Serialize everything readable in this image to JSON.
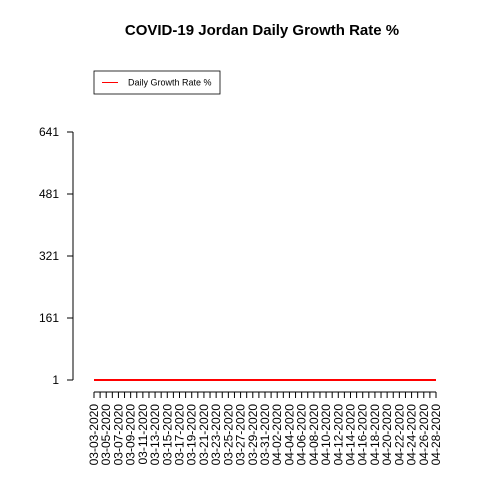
{
  "chart_data": {
    "type": "line",
    "title": "COVID-19 Jordan Daily Growth Rate %",
    "xlabel": "",
    "ylabel": "",
    "yticks": [
      1,
      161,
      321,
      481,
      641
    ],
    "ylim": [
      1,
      641
    ],
    "grid": false,
    "legend_position": "top-left",
    "x": [
      "03-03-2020",
      "03-04-2020",
      "03-05-2020",
      "03-06-2020",
      "03-07-2020",
      "03-08-2020",
      "03-09-2020",
      "03-10-2020",
      "03-11-2020",
      "03-12-2020",
      "03-13-2020",
      "03-14-2020",
      "03-15-2020",
      "03-16-2020",
      "03-17-2020",
      "03-18-2020",
      "03-19-2020",
      "03-20-2020",
      "03-21-2020",
      "03-22-2020",
      "03-23-2020",
      "03-24-2020",
      "03-25-2020",
      "03-26-2020",
      "03-27-2020",
      "03-28-2020",
      "03-29-2020",
      "03-30-2020",
      "03-31-2020",
      "04-01-2020",
      "04-02-2020",
      "04-03-2020",
      "04-04-2020",
      "04-05-2020",
      "04-06-2020",
      "04-07-2020",
      "04-08-2020",
      "04-09-2020",
      "04-10-2020",
      "04-11-2020",
      "04-12-2020",
      "04-13-2020",
      "04-14-2020",
      "04-15-2020",
      "04-16-2020",
      "04-17-2020",
      "04-18-2020",
      "04-19-2020",
      "04-20-2020",
      "04-21-2020",
      "04-22-2020",
      "04-23-2020",
      "04-24-2020",
      "04-25-2020",
      "04-26-2020",
      "04-27-2020",
      "04-28-2020"
    ],
    "x_labeled": [
      "03-03-2020",
      "03-05-2020",
      "03-07-2020",
      "03-09-2020",
      "03-11-2020",
      "03-13-2020",
      "03-15-2020",
      "03-17-2020",
      "03-19-2020",
      "03-21-2020",
      "03-23-2020",
      "03-25-2020",
      "03-27-2020",
      "03-29-2020",
      "03-31-2020",
      "04-02-2020",
      "04-04-2020",
      "04-06-2020",
      "04-08-2020",
      "04-10-2020",
      "04-12-2020",
      "04-14-2020",
      "04-16-2020",
      "04-18-2020",
      "04-20-2020",
      "04-22-2020",
      "04-24-2020",
      "04-26-2020",
      "04-28-2020"
    ],
    "series": [
      {
        "name": "Daily Growth Rate %",
        "color": "#ff0000",
        "values": [
          1,
          1,
          1,
          1,
          1,
          1,
          1,
          1,
          1,
          1,
          1,
          1,
          1,
          1,
          1,
          1,
          1,
          1,
          1,
          1,
          1,
          1,
          1,
          1,
          1,
          1,
          1,
          1,
          1,
          1,
          1,
          1,
          1,
          1,
          1,
          1,
          1,
          1,
          1,
          1,
          1,
          1,
          1,
          1,
          1,
          1,
          1,
          1,
          1,
          1,
          1,
          1,
          1,
          1,
          1,
          1,
          1
        ]
      }
    ]
  }
}
